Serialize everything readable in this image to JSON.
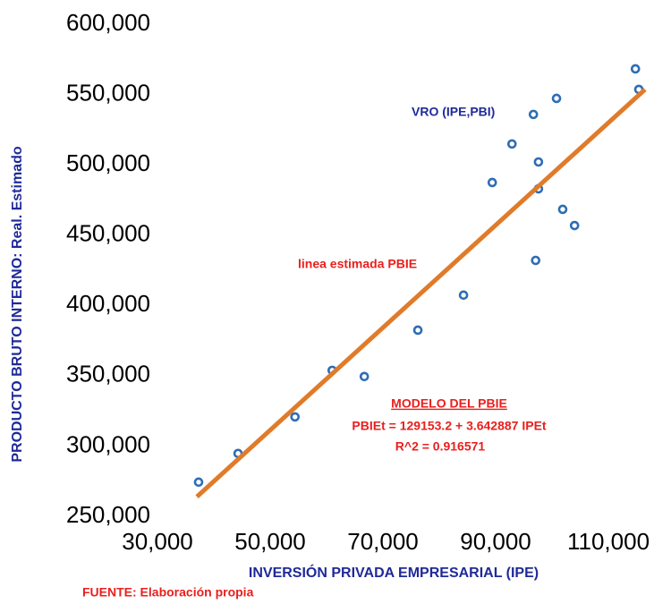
{
  "chart_data": {
    "type": "scatter",
    "x_label": "INVERSIÓN PRIVADA EMPRESARIAL (IPE)",
    "y_label": "PRODUCTO BRUTO INTERNO: Real. Estimado",
    "xlim": [
      30000,
      120000
    ],
    "ylim": [
      250000,
      600000
    ],
    "xticks": [
      {
        "value": 30000,
        "label": "30,000"
      },
      {
        "value": 50000,
        "label": "50,000"
      },
      {
        "value": 70000,
        "label": "70,000"
      },
      {
        "value": 90000,
        "label": "90,000"
      },
      {
        "value": 110000,
        "label": "110,000"
      }
    ],
    "yticks": [
      {
        "value": 250000,
        "label": "250,000"
      },
      {
        "value": 300000,
        "label": "300,000"
      },
      {
        "value": 350000,
        "label": "350,000"
      },
      {
        "value": 400000,
        "label": "400,000"
      },
      {
        "value": 450000,
        "label": "450,000"
      },
      {
        "value": 500000,
        "label": "500,000"
      },
      {
        "value": 550000,
        "label": "550,000"
      },
      {
        "value": 600000,
        "label": "600,000"
      }
    ],
    "series": [
      {
        "name": "VRO (IPE,PBI)",
        "color": "#2e6db4",
        "x": [
          37300,
          44300,
          54400,
          61000,
          66700,
          76200,
          84300,
          89400,
          92900,
          96700,
          97600,
          97600,
          97100,
          100800,
          101900,
          104000,
          114800,
          115400
        ],
        "values": [
          274300,
          294700,
          320700,
          353800,
          349400,
          382400,
          407300,
          487400,
          514800,
          535800,
          502000,
          482900,
          432000,
          547200,
          468300,
          456800,
          568200,
          553600
        ]
      },
      {
        "name": "linea estimada PBIE",
        "color": "#e07b2a",
        "style": "line",
        "x": [
          37000,
          116500
        ],
        "values": [
          263940,
          553549.5
        ]
      }
    ],
    "annotations": [
      "MODELO DEL PBIE",
      "PBIEt = 129153.2 + 3.642887 IPEt",
      "R^2 = 0.916571"
    ],
    "source": "FUENTE: Elaboración propia"
  }
}
